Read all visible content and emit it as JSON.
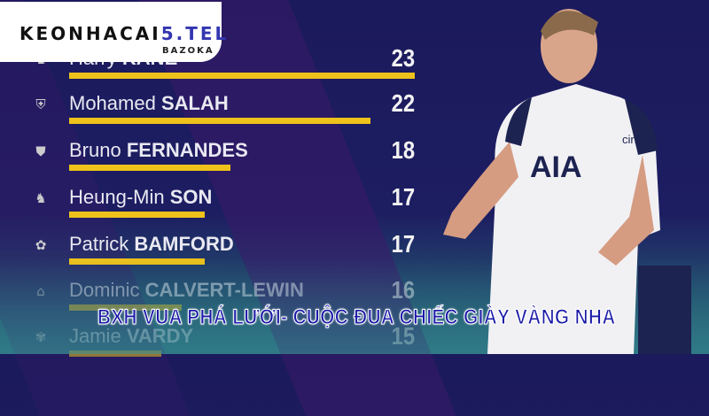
{
  "logo": {
    "main": "KEONHACAI",
    "accent": "5.TEL",
    "sub": "BAZOKA"
  },
  "scorers": [
    {
      "first": "Harry",
      "last": "KANE",
      "goals": 23,
      "club_icon": "tottenham-crest-icon"
    },
    {
      "first": "Mohamed",
      "last": "SALAH",
      "goals": 22,
      "club_icon": "liverpool-crest-icon"
    },
    {
      "first": "Bruno",
      "last": "FERNANDES",
      "goals": 18,
      "club_icon": "man-utd-crest-icon"
    },
    {
      "first": "Heung-Min",
      "last": "SON",
      "goals": 17,
      "club_icon": "tottenham-crest-icon"
    },
    {
      "first": "Patrick",
      "last": "BAMFORD",
      "goals": 17,
      "club_icon": "leeds-crest-icon"
    },
    {
      "first": "Dominic",
      "last": "CALVERT-LEWIN",
      "goals": 16,
      "club_icon": "everton-crest-icon"
    },
    {
      "first": "Jamie",
      "last": "VARDY",
      "goals": 15,
      "club_icon": "leicester-crest-icon"
    }
  ],
  "player": {
    "shirt_text": "AIA",
    "sponsor": "cinch"
  },
  "caption": "BXH VUA PHÁ LƯỚI- CUỘC ĐUA CHIẾC GIÀY VÀNG NHA",
  "colors": {
    "background": "#1b1a5c",
    "bar": "#eec21a",
    "caption": "#1a1aa8"
  }
}
